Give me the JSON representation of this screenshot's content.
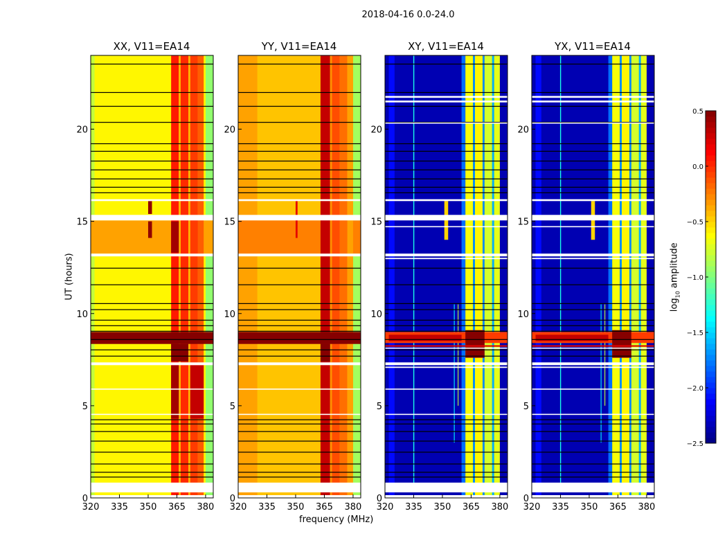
{
  "chart_data": {
    "type": "heatmap",
    "title": "2018-04-16 0.0-24.0",
    "xlabel": "frequency (MHz)",
    "ylabel": "UT (hours)",
    "xlim": [
      320,
      384
    ],
    "ylim": [
      0,
      24
    ],
    "xticks": [
      320,
      335,
      350,
      365,
      380
    ],
    "yticks": [
      0,
      5,
      10,
      15,
      20
    ],
    "colorbar": {
      "label_prefix": "log",
      "label_sub": "10",
      "label_suffix": " amplitude",
      "colormap": "jet",
      "range": [
        -2.5,
        0.5
      ],
      "ticks": [
        "0.5",
        "0.0",
        "−0.5",
        "−1.0",
        "−1.5",
        "−2.0",
        "−2.5"
      ],
      "tick_values": [
        0.5,
        0.0,
        -0.5,
        -1.0,
        -1.5,
        -2.0,
        -2.5
      ]
    },
    "flagged_rows_hours": [
      [
        0,
        0.15
      ],
      [
        0.3,
        0.83
      ],
      [
        4.5,
        4.56
      ],
      [
        5.87,
        5.93
      ],
      [
        7.2,
        7.35
      ],
      [
        13.1,
        13.25
      ],
      [
        15.05,
        15.35
      ],
      [
        16.1,
        16.2
      ]
    ],
    "cross_extra_flagged_rows_hours": [
      [
        7.05,
        7.12
      ],
      [
        8.1,
        8.15
      ],
      [
        12.95,
        13.02
      ],
      [
        14.68,
        14.74
      ],
      [
        20.3,
        20.36
      ],
      [
        21.45,
        21.55
      ],
      [
        21.7,
        21.8
      ]
    ],
    "gap_lines_hours": [
      1.13,
      1.39,
      1.84,
      2.48,
      3.08,
      3.6,
      4.01,
      4.24,
      7.69,
      8.03,
      8.59,
      9.04,
      9.34,
      9.64,
      10.21,
      10.54,
      11.56,
      12.46,
      16.55,
      16.85,
      17.3,
      17.79,
      18.27,
      18.8,
      19.21,
      20.37,
      21.24,
      21.99,
      23.53
    ],
    "panels": [
      {
        "title": "XX, V11=EA14",
        "background": -0.6,
        "blocks": [
          {
            "f": [
              320,
              322
            ],
            "t": [
              0,
              24
            ],
            "v": -0.8
          },
          {
            "f": [
              380,
              384
            ],
            "t": [
              0,
              24
            ],
            "v": -0.95
          },
          {
            "f": [
              320,
              384
            ],
            "t": [
              13.25,
              15.05
            ],
            "v": -0.35
          },
          {
            "f": [
              362,
              366
            ],
            "t": [
              0,
              24
            ],
            "v": 0.05
          },
          {
            "f": [
              366,
              367
            ],
            "t": [
              0,
              24
            ],
            "v": -0.4
          },
          {
            "f": [
              367,
              371
            ],
            "t": [
              0,
              24
            ],
            "v": 0.0
          },
          {
            "f": [
              371,
              372
            ],
            "t": [
              0,
              24
            ],
            "v": -0.4
          },
          {
            "f": [
              372,
              376
            ],
            "t": [
              0,
              24
            ],
            "v": -0.05
          },
          {
            "f": [
              376,
              379
            ],
            "t": [
              0,
              24
            ],
            "v": -0.15
          },
          {
            "f": [
              362,
              366
            ],
            "t": [
              4.3,
              7.2
            ],
            "v": 0.4
          },
          {
            "f": [
              372,
              379
            ],
            "t": [
              4.3,
              7.2
            ],
            "v": 0.3
          },
          {
            "f": [
              362,
              366
            ],
            "t": [
              13.3,
              15.0
            ],
            "v": 0.4
          },
          {
            "f": [
              350,
              352
            ],
            "t": [
              15.4,
              16.1
            ],
            "v": 0.45
          },
          {
            "f": [
              350,
              352
            ],
            "t": [
              14.1,
              15.0
            ],
            "v": 0.45
          },
          {
            "f": [
              320,
              384
            ],
            "t": [
              8.35,
              9.0
            ],
            "v": 0.48
          },
          {
            "f": [
              362,
              371
            ],
            "t": [
              7.4,
              8.35
            ],
            "v": 0.48
          }
        ]
      },
      {
        "title": "YY, V11=EA14",
        "background": -0.45,
        "blocks": [
          {
            "f": [
              320,
              330
            ],
            "t": [
              0,
              24
            ],
            "v": -0.35
          },
          {
            "f": [
              380,
              384
            ],
            "t": [
              0,
              24
            ],
            "v": -0.9
          },
          {
            "f": [
              320,
              384
            ],
            "t": [
              13.25,
              15.05
            ],
            "v": -0.25
          },
          {
            "f": [
              363,
              368
            ],
            "t": [
              0,
              24
            ],
            "v": 0.3
          },
          {
            "f": [
              368,
              369
            ],
            "t": [
              0,
              24
            ],
            "v": -0.3
          },
          {
            "f": [
              369,
              373
            ],
            "t": [
              0,
              24
            ],
            "v": -0.1
          },
          {
            "f": [
              373,
              377
            ],
            "t": [
              0,
              24
            ],
            "v": -0.2
          },
          {
            "f": [
              377,
              380
            ],
            "t": [
              0,
              24
            ],
            "v": -0.35
          },
          {
            "f": [
              350,
              351
            ],
            "t": [
              14.1,
              16.1
            ],
            "v": 0.2
          },
          {
            "f": [
              320,
              384
            ],
            "t": [
              8.35,
              9.0
            ],
            "v": 0.48
          },
          {
            "f": [
              363,
              368
            ],
            "t": [
              7.4,
              8.35
            ],
            "v": 0.48
          }
        ]
      },
      {
        "title": "XY, V11=EA14",
        "background": -2.35,
        "blocks": [
          {
            "f": [
              322,
              325
            ],
            "t": [
              0,
              24
            ],
            "v": -2.1
          },
          {
            "f": [
              334.8,
              335.3
            ],
            "t": [
              0.83,
              24
            ],
            "v": -1.3
          },
          {
            "f": [
              356,
              356.4
            ],
            "t": [
              3,
              10.5
            ],
            "v": -1.4
          },
          {
            "f": [
              358,
              358.4
            ],
            "t": [
              5,
              10.5
            ],
            "v": -0.8
          },
          {
            "f": [
              360,
              362
            ],
            "t": [
              0,
              24
            ],
            "v": -1.8
          },
          {
            "f": [
              362,
              366
            ],
            "t": [
              0,
              24
            ],
            "v": -0.65
          },
          {
            "f": [
              366,
              367
            ],
            "t": [
              0,
              24
            ],
            "v": -1.7
          },
          {
            "f": [
              367,
              371
            ],
            "t": [
              0,
              24
            ],
            "v": -0.6
          },
          {
            "f": [
              371,
              372
            ],
            "t": [
              0,
              24
            ],
            "v": -1.7
          },
          {
            "f": [
              372,
              376
            ],
            "t": [
              0,
              24
            ],
            "v": -0.75
          },
          {
            "f": [
              376,
              377
            ],
            "t": [
              0,
              24
            ],
            "v": -1.6
          },
          {
            "f": [
              377,
              380
            ],
            "t": [
              0,
              24
            ],
            "v": -0.7
          },
          {
            "f": [
              351,
              353
            ],
            "t": [
              14,
              16.1
            ],
            "v": -0.5
          },
          {
            "f": [
              320,
              384
            ],
            "t": [
              8.4,
              9.0
            ],
            "v": -0.05
          },
          {
            "f": [
              322,
              360
            ],
            "t": [
              8.5,
              8.85
            ],
            "v": 0.3
          },
          {
            "f": [
              362,
              372
            ],
            "t": [
              7.6,
              9.1
            ],
            "v": 0.48
          },
          {
            "f": [
              320,
              384
            ],
            "t": [
              8.2,
              8.28
            ],
            "v": 0.2
          }
        ]
      },
      {
        "title": "YX, V11=EA14",
        "background": -2.35,
        "blocks": [
          {
            "f": [
              322,
              325
            ],
            "t": [
              0,
              24
            ],
            "v": -2.1
          },
          {
            "f": [
              334.8,
              335.3
            ],
            "t": [
              0.83,
              24
            ],
            "v": -1.3
          },
          {
            "f": [
              356,
              356.4
            ],
            "t": [
              3,
              10.5
            ],
            "v": -1.4
          },
          {
            "f": [
              358,
              358.4
            ],
            "t": [
              5,
              10.5
            ],
            "v": -0.8
          },
          {
            "f": [
              360,
              362
            ],
            "t": [
              0,
              24
            ],
            "v": -1.8
          },
          {
            "f": [
              362,
              366
            ],
            "t": [
              0,
              24
            ],
            "v": -0.65
          },
          {
            "f": [
              366,
              367
            ],
            "t": [
              0,
              24
            ],
            "v": -1.7
          },
          {
            "f": [
              367,
              371
            ],
            "t": [
              0,
              24
            ],
            "v": -0.6
          },
          {
            "f": [
              371,
              372
            ],
            "t": [
              0,
              24
            ],
            "v": -1.7
          },
          {
            "f": [
              372,
              376
            ],
            "t": [
              0,
              24
            ],
            "v": -0.75
          },
          {
            "f": [
              376,
              377
            ],
            "t": [
              0,
              24
            ],
            "v": -1.6
          },
          {
            "f": [
              377,
              380
            ],
            "t": [
              0,
              24
            ],
            "v": -0.7
          },
          {
            "f": [
              351,
              353
            ],
            "t": [
              14,
              16.1
            ],
            "v": -0.5
          },
          {
            "f": [
              320,
              384
            ],
            "t": [
              8.4,
              9.0
            ],
            "v": -0.05
          },
          {
            "f": [
              322,
              360
            ],
            "t": [
              8.5,
              8.85
            ],
            "v": 0.3
          },
          {
            "f": [
              362,
              372
            ],
            "t": [
              7.6,
              9.1
            ],
            "v": 0.48
          },
          {
            "f": [
              320,
              384
            ],
            "t": [
              8.2,
              8.28
            ],
            "v": 0.2
          }
        ]
      }
    ]
  }
}
